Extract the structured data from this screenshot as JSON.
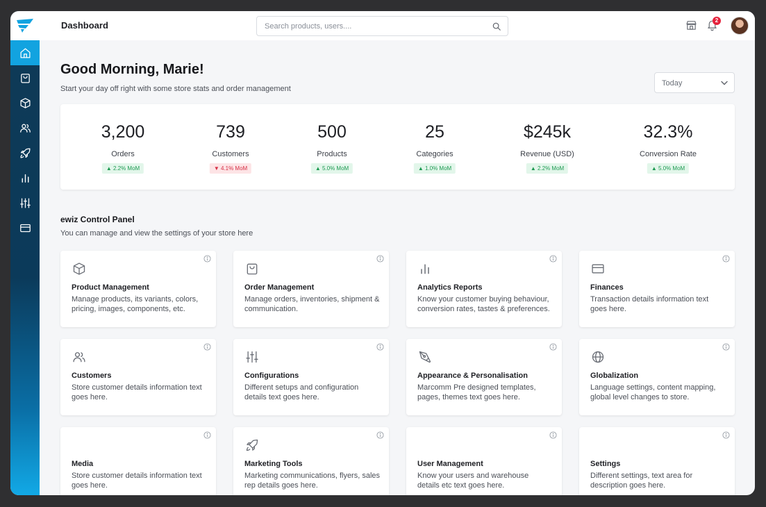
{
  "header": {
    "title": "Dashboard",
    "search_placeholder": "Search products, users....",
    "notification_count": "2"
  },
  "sidebar": {
    "items": [
      {
        "name": "home-icon",
        "active": true
      },
      {
        "name": "shopping-bag-icon"
      },
      {
        "name": "box-icon"
      },
      {
        "name": "users-icon"
      },
      {
        "name": "rocket-icon"
      },
      {
        "name": "bar-chart-icon"
      },
      {
        "name": "sliders-icon"
      },
      {
        "name": "credit-card-icon"
      }
    ]
  },
  "greeting": {
    "title": "Good Morning, Marie!",
    "subtitle": "Start your day off right with some store stats and order management"
  },
  "date_range": {
    "selected": "Today"
  },
  "stats": [
    {
      "value": "3,200",
      "label": "Orders",
      "delta": "2.2% MoM",
      "trend": "up"
    },
    {
      "value": "739",
      "label": "Customers",
      "delta": "4.1% MoM",
      "trend": "down"
    },
    {
      "value": "500",
      "label": "Products",
      "delta": "5.0% MoM",
      "trend": "up"
    },
    {
      "value": "25",
      "label": "Categories",
      "delta": "1.0% MoM",
      "trend": "up"
    },
    {
      "value": "$245k",
      "label": "Revenue (USD)",
      "delta": "2.2% MoM",
      "trend": "up"
    },
    {
      "value": "32.3%",
      "label": "Conversion Rate",
      "delta": "5.0% MoM",
      "trend": "up"
    }
  ],
  "control_panel": {
    "title": "ewiz Control Panel",
    "subtitle": "You can manage and view the settings of your store here",
    "cards": [
      {
        "title": "Product Management",
        "desc": "Manage products, its variants, colors, pricing, images, components, etc.",
        "icon": "box-icon"
      },
      {
        "title": "Order Management",
        "desc": "Manage orders, inventories, shipment & communication.",
        "icon": "shopping-bag-icon"
      },
      {
        "title": "Analytics Reports",
        "desc": "Know your customer buying behaviour, conversion rates, tastes & preferences.",
        "icon": "bar-chart-icon"
      },
      {
        "title": "Finances",
        "desc": "Transaction details information text goes here.",
        "icon": "credit-card-icon"
      },
      {
        "title": "Customers",
        "desc": "Store customer details information text goes here.",
        "icon": "users-icon"
      },
      {
        "title": "Configurations",
        "desc": "Different setups and configuration details text goes here.",
        "icon": "sliders-icon"
      },
      {
        "title": "Appearance & Personalisation",
        "desc": "Marcomm Pre designed templates, pages, themes text goes here.",
        "icon": "pen-tool-icon"
      },
      {
        "title": "Globalization",
        "desc": "Language settings, content mapping, global level changes to store.",
        "icon": "globe-icon"
      },
      {
        "title": "Media",
        "desc": "Store customer details information text goes here.",
        "icon": ""
      },
      {
        "title": "Marketing Tools",
        "desc": "Marketing communications, flyers, sales rep details goes here.",
        "icon": "rocket-icon"
      },
      {
        "title": "User Management",
        "desc": "Know your users and warehouse details etc text goes here.",
        "icon": ""
      },
      {
        "title": "Settings",
        "desc": "Different settings, text area for description goes here.",
        "icon": ""
      }
    ]
  },
  "colors": {
    "accent": "#12a3e0",
    "sidebar_dark": "#0f3a56",
    "positive": "#1e9a52",
    "negative": "#d62f45"
  }
}
